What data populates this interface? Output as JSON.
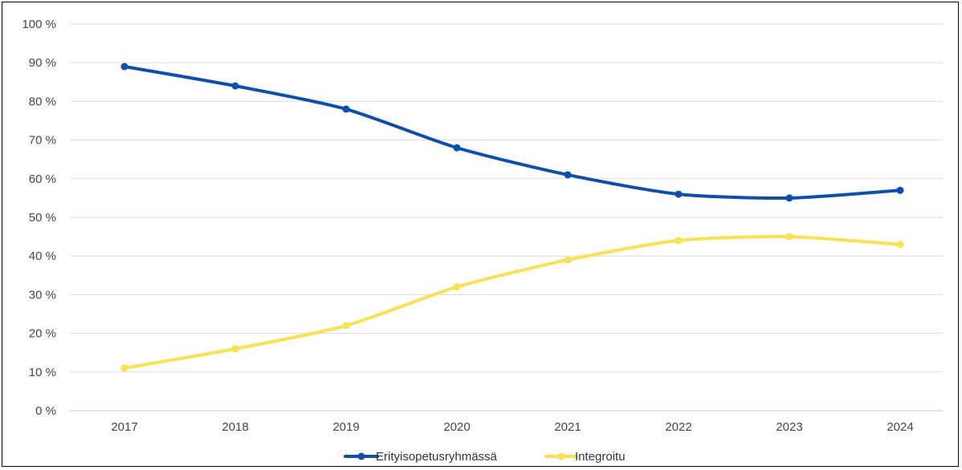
{
  "chart_data": {
    "type": "line",
    "title": "",
    "xlabel": "",
    "ylabel": "",
    "categories": [
      "2017",
      "2018",
      "2019",
      "2020",
      "2021",
      "2022",
      "2023",
      "2024"
    ],
    "ylim": [
      0,
      100
    ],
    "y_ticks": [
      0,
      10,
      20,
      30,
      40,
      50,
      60,
      70,
      80,
      90,
      100
    ],
    "y_tick_labels": [
      "0 %",
      "10 %",
      "20 %",
      "30 %",
      "40 %",
      "50 %",
      "60 %",
      "70 %",
      "80 %",
      "90 %",
      "100 %"
    ],
    "grid": true,
    "legend_position": "bottom",
    "series": [
      {
        "name": "Erityisopetusryhmässä",
        "color": "#0a4fb5",
        "values": [
          89,
          84,
          78,
          68,
          61,
          56,
          55,
          57
        ]
      },
      {
        "name": "Integroitu",
        "color": "#fbe14b",
        "values": [
          11,
          16,
          22,
          32,
          39,
          44,
          45,
          43
        ]
      }
    ]
  }
}
